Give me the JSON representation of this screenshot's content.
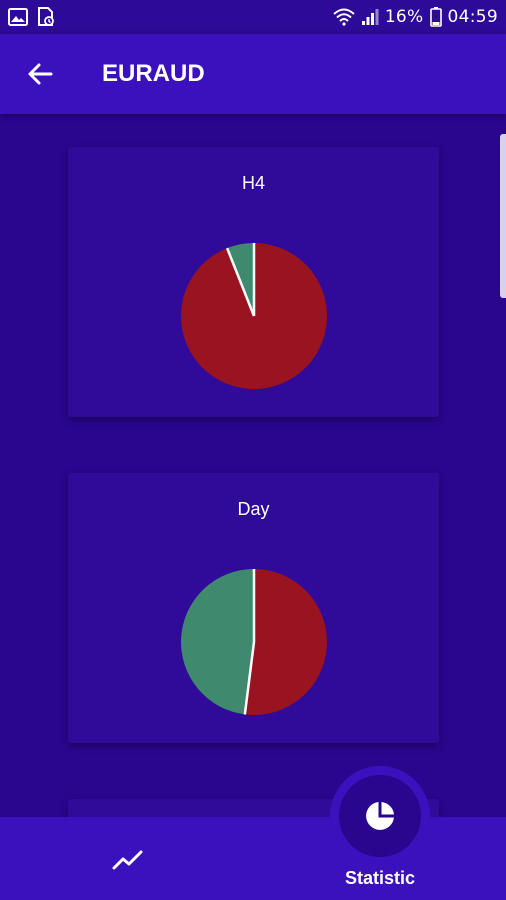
{
  "status_bar": {
    "battery": "16%",
    "time": "04:59",
    "icons": [
      "image-icon",
      "sim-icon",
      "wifi-icon",
      "signal-icon",
      "battery-icon"
    ]
  },
  "app_bar": {
    "back_icon": "arrow-left-icon",
    "title": "EURAUD"
  },
  "cards": [
    {
      "title": "H4",
      "slices": [
        {
          "label": "red",
          "fraction": 0.94,
          "color": "#9a1321"
        },
        {
          "label": "green",
          "fraction": 0.06,
          "color": "#3f8a6e"
        }
      ]
    },
    {
      "title": "Day",
      "slices": [
        {
          "label": "red",
          "fraction": 0.52,
          "color": "#9a1321"
        },
        {
          "label": "green",
          "fraction": 0.48,
          "color": "#3f8a6e"
        }
      ]
    }
  ],
  "bottom_nav": {
    "items": [
      {
        "icon": "trend-chart-icon",
        "label": ""
      },
      {
        "icon": "pie-chart-icon",
        "label": "Statistic"
      }
    ]
  },
  "colors": {
    "background": "#2a068e",
    "app_bar": "#3b10bd",
    "card": "#300a98",
    "bearish": "#9a1321",
    "bullish": "#3f8a6e"
  }
}
